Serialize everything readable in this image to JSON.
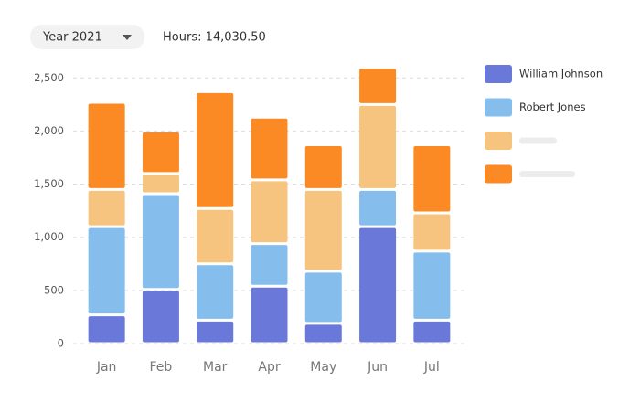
{
  "header": {
    "year_selector": "Year 2021",
    "hours": "Hours: 14,030.50"
  },
  "chart_data": {
    "type": "stacked_bar",
    "categories": [
      "Jan",
      "Feb",
      "Mar",
      "Apr",
      "May",
      "Jun",
      "Jul"
    ],
    "series": [
      {
        "name": "William Johnson",
        "color": "#6a79d9",
        "values": [
          270,
          510,
          220,
          540,
          190,
          1100,
          220
        ]
      },
      {
        "name": "Robert Jones",
        "color": "#85bdec",
        "values": [
          830,
          900,
          530,
          400,
          490,
          350,
          650
        ]
      },
      {
        "color": "#f6c47f",
        "values": [
          350,
          190,
          520,
          600,
          770,
          800,
          360
        ]
      },
      {
        "color": "#fb8a24",
        "values": [
          820,
          400,
          1100,
          590,
          420,
          350,
          640
        ]
      }
    ],
    "ylim": [
      0,
      2700
    ],
    "yticks": [
      0,
      500,
      {
        "value": 1000,
        "label": "1,000"
      },
      {
        "value": 1500,
        "label": "1,500"
      },
      {
        "value": 2000,
        "label": "2,000"
      },
      {
        "value": 2500,
        "label": "2,500"
      }
    ],
    "grid": true,
    "legend": "right"
  }
}
